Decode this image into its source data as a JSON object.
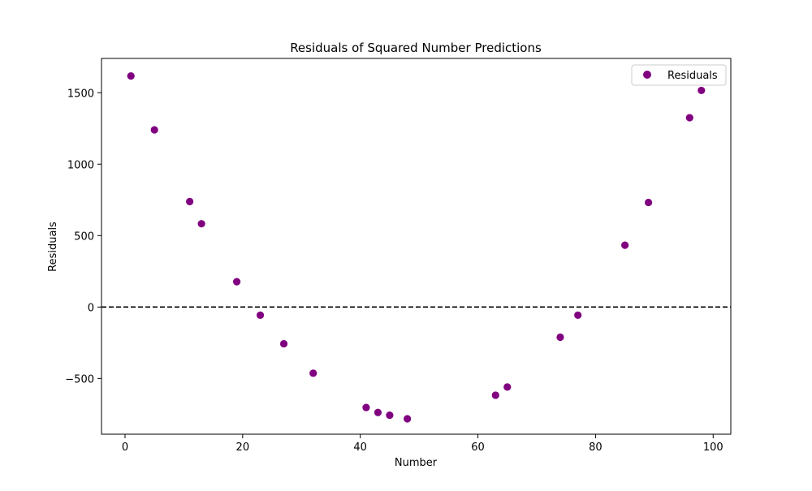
{
  "chart_data": {
    "type": "scatter",
    "title": "Residuals of Squared Number Predictions",
    "xlabel": "Number",
    "ylabel": "Residuals",
    "xlim": [
      -4,
      103
    ],
    "ylim": [
      -890,
      1740
    ],
    "xticks": [
      0,
      20,
      40,
      60,
      80,
      100
    ],
    "yticks": [
      -500,
      0,
      500,
      1000,
      1500
    ],
    "grid": false,
    "legend_position": "top-right",
    "reference_line": {
      "y": 0,
      "style": "dashed",
      "color": "#000000"
    },
    "series": [
      {
        "name": "Residuals",
        "color": "#800080",
        "points": [
          [
            1,
            1617
          ],
          [
            5,
            1240
          ],
          [
            11,
            738
          ],
          [
            13,
            583
          ],
          [
            19,
            177
          ],
          [
            23,
            -57
          ],
          [
            27,
            -257
          ],
          [
            32,
            -463
          ],
          [
            41,
            -703
          ],
          [
            43,
            -738
          ],
          [
            45,
            -757
          ],
          [
            48,
            -782
          ],
          [
            63,
            -617
          ],
          [
            65,
            -560
          ],
          [
            74,
            -211
          ],
          [
            77,
            -57
          ],
          [
            85,
            433
          ],
          [
            89,
            732
          ],
          [
            96,
            1325
          ],
          [
            98,
            1516
          ]
        ]
      }
    ]
  }
}
